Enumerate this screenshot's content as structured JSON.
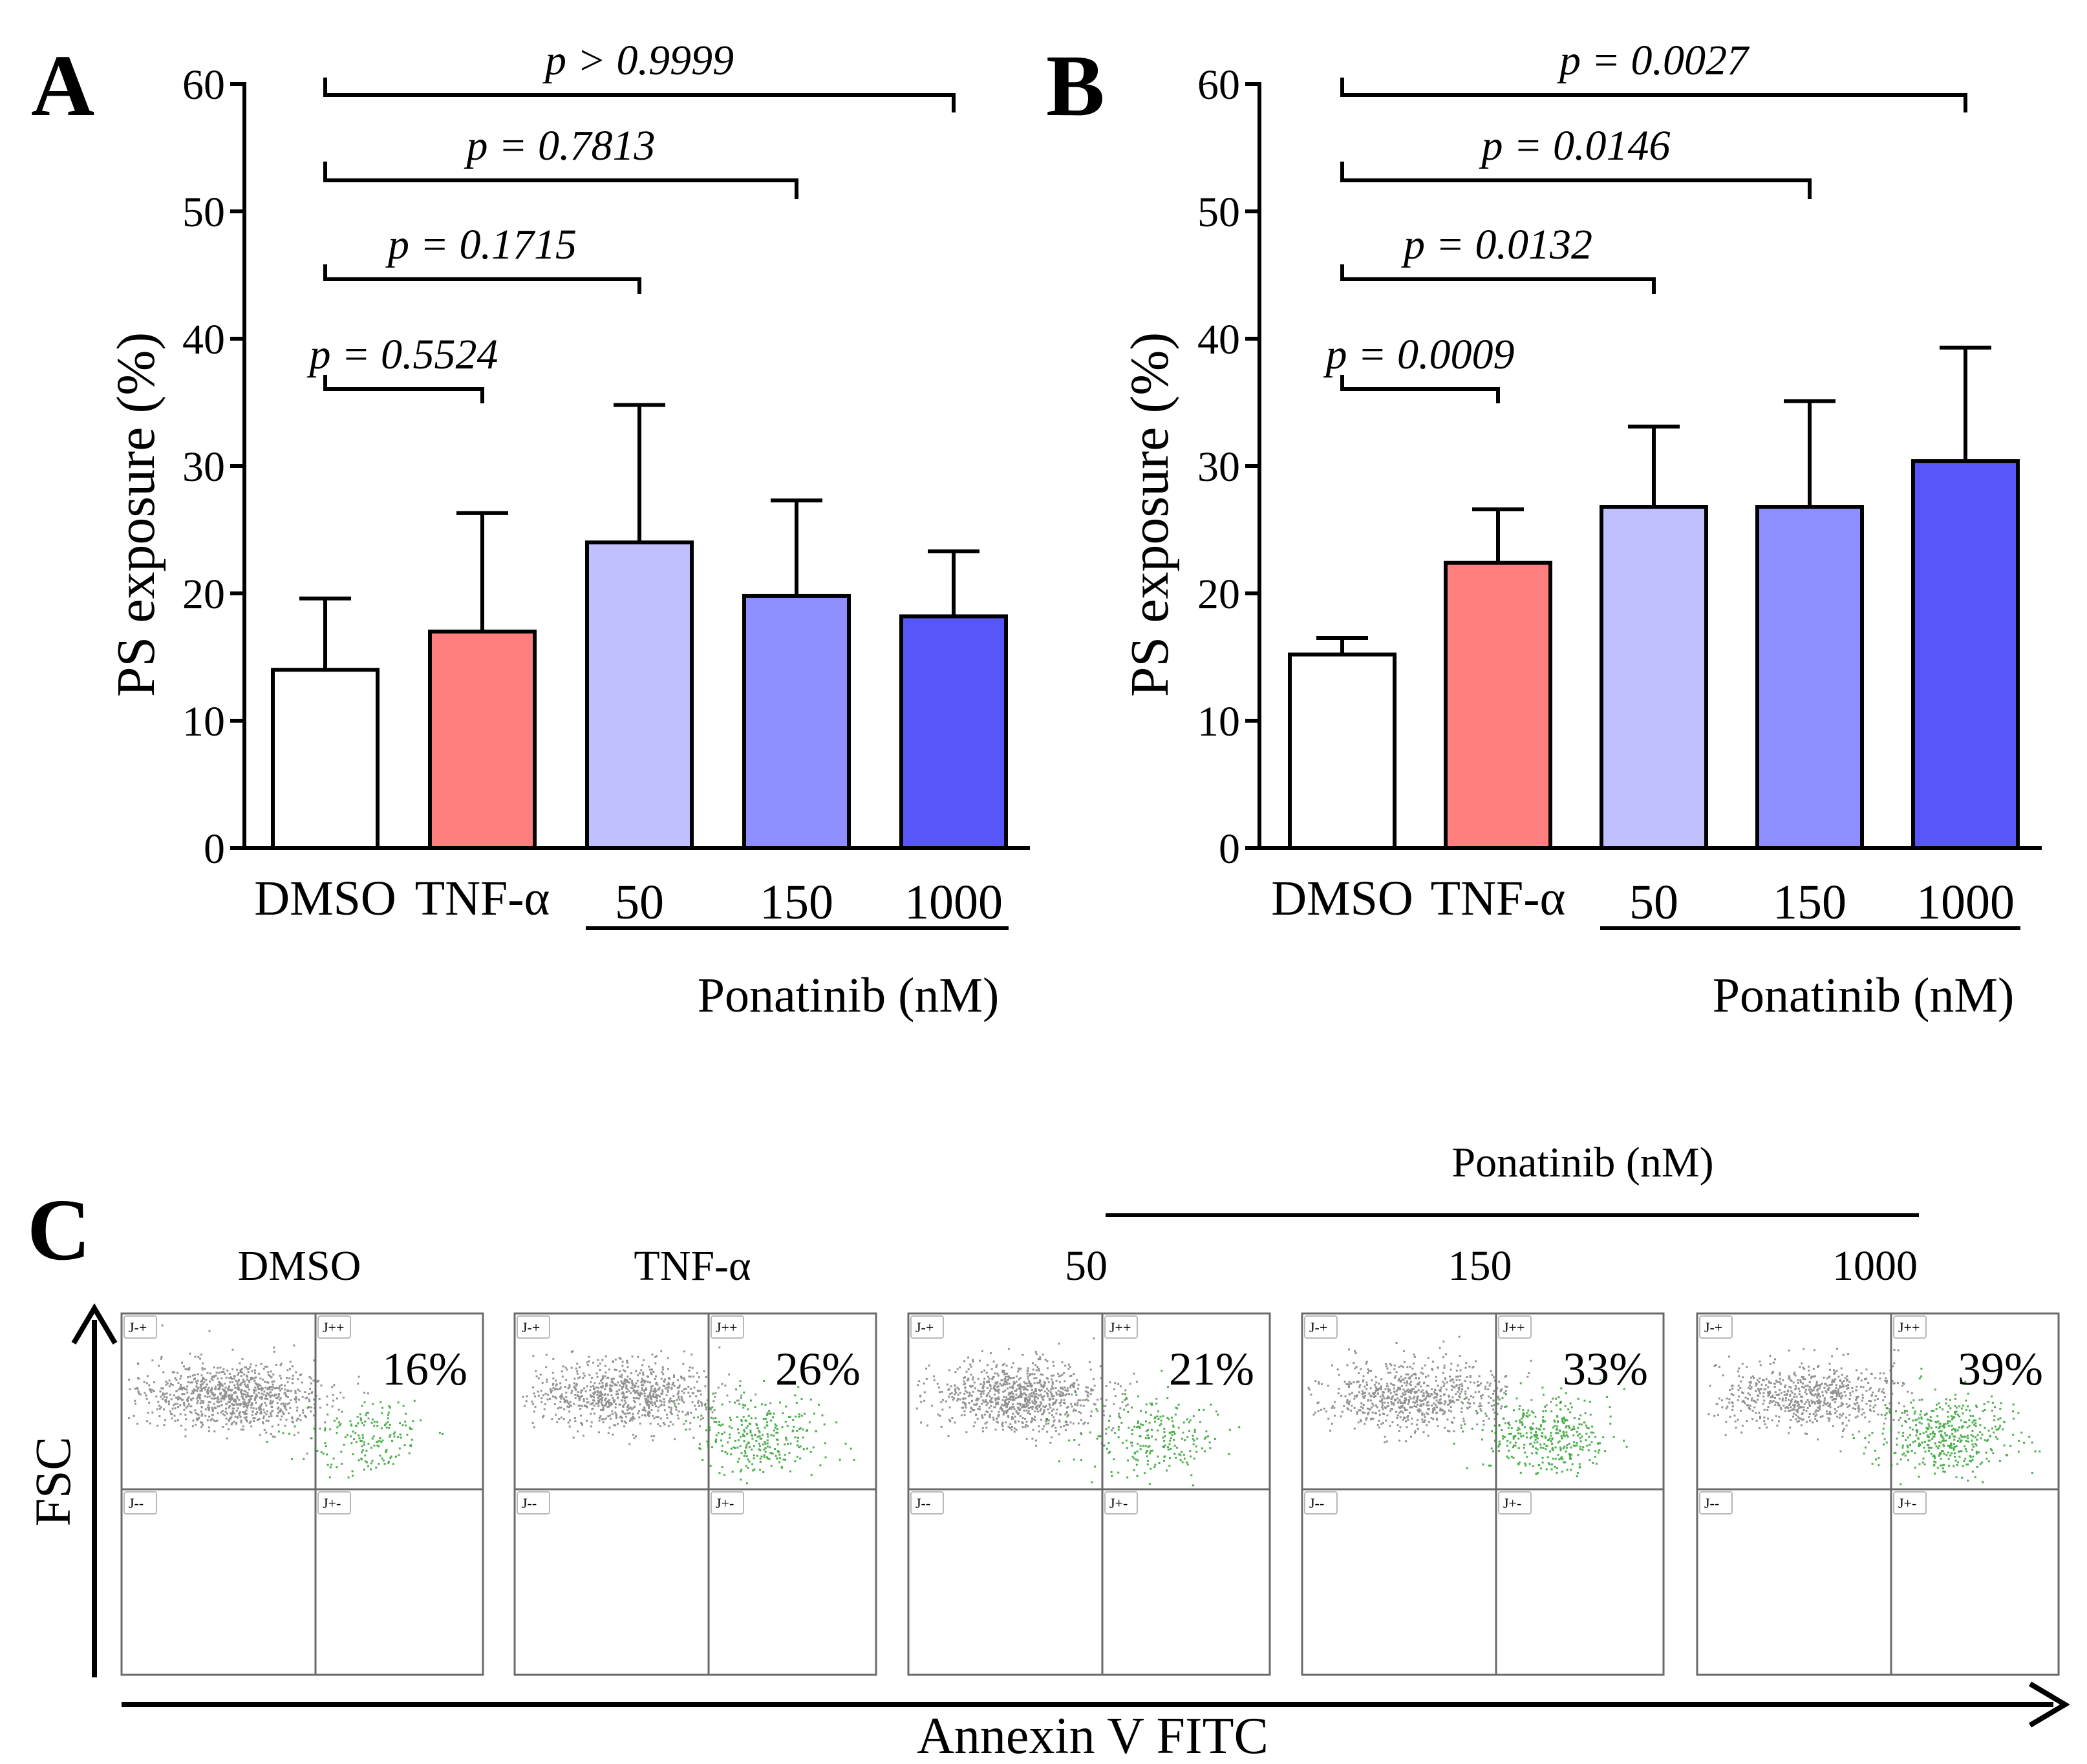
{
  "figure_title": "",
  "chart_data": [
    {
      "panel": "A",
      "type": "bar",
      "categories": [
        "DMSO",
        "TNF-α",
        "50",
        "150",
        "1000"
      ],
      "values": [
        14,
        17,
        24,
        19.8,
        18.2
      ],
      "error_sd": [
        5.6,
        9.3,
        10.8,
        7.5,
        5.1
      ],
      "bar_colors": [
        "#ffffff",
        "#ff7f7f",
        "#c0c0ff",
        "#8e8eff",
        "#5757f9"
      ],
      "ylabel": "PS exposure (%)",
      "xlabel": "",
      "ylim": [
        0,
        60
      ],
      "yticks": [
        0,
        10,
        20,
        30,
        40,
        50,
        60
      ],
      "group_label": "Ponatinib (nM)",
      "comparisons": [
        {
          "from": 0,
          "to": 1,
          "label": "p = 0.5524"
        },
        {
          "from": 0,
          "to": 2,
          "label": "p = 0.1715"
        },
        {
          "from": 0,
          "to": 3,
          "label": "p = 0.7813"
        },
        {
          "from": 0,
          "to": 4,
          "label": "p > 0.9999"
        }
      ]
    },
    {
      "panel": "B",
      "type": "bar",
      "categories": [
        "DMSO",
        "TNF-α",
        "50",
        "150",
        "1000"
      ],
      "values": [
        15.2,
        22.4,
        26.8,
        26.8,
        30.4
      ],
      "error_sd": [
        1.3,
        4.2,
        6.3,
        8.3,
        8.9
      ],
      "bar_colors": [
        "#ffffff",
        "#ff7f7f",
        "#c0c0ff",
        "#8e8eff",
        "#5757f9"
      ],
      "ylabel": "PS exposure (%)",
      "xlabel": "",
      "ylim": [
        0,
        60
      ],
      "yticks": [
        0,
        10,
        20,
        30,
        40,
        50,
        60
      ],
      "group_label": "Ponatinib (nM)",
      "comparisons": [
        {
          "from": 0,
          "to": 1,
          "label": "p = 0.0009"
        },
        {
          "from": 0,
          "to": 2,
          "label": "p = 0.0132"
        },
        {
          "from": 0,
          "to": 3,
          "label": "p = 0.0146"
        },
        {
          "from": 0,
          "to": 4,
          "label": "p = 0.0027"
        }
      ]
    },
    {
      "panel": "C",
      "type": "scatter",
      "title": "",
      "xlabel": "Annexin V FITC",
      "ylabel": "FSC",
      "group_label": "Ponatinib (nM)",
      "quadrant_labels": [
        "J-+",
        "J++",
        "J--",
        "J+-"
      ],
      "plots": [
        {
          "label": "DMSO",
          "percent": "16%",
          "positive_fraction": 0.16
        },
        {
          "label": "TNF-α",
          "percent": "26%",
          "positive_fraction": 0.26
        },
        {
          "label": "50",
          "percent": "21%",
          "positive_fraction": 0.21
        },
        {
          "label": "150",
          "percent": "33%",
          "positive_fraction": 0.33
        },
        {
          "label": "1000",
          "percent": "39%",
          "positive_fraction": 0.39
        }
      ],
      "colors": {
        "negative": "#6e6e6e",
        "positive": "#1f9a1f"
      }
    }
  ]
}
